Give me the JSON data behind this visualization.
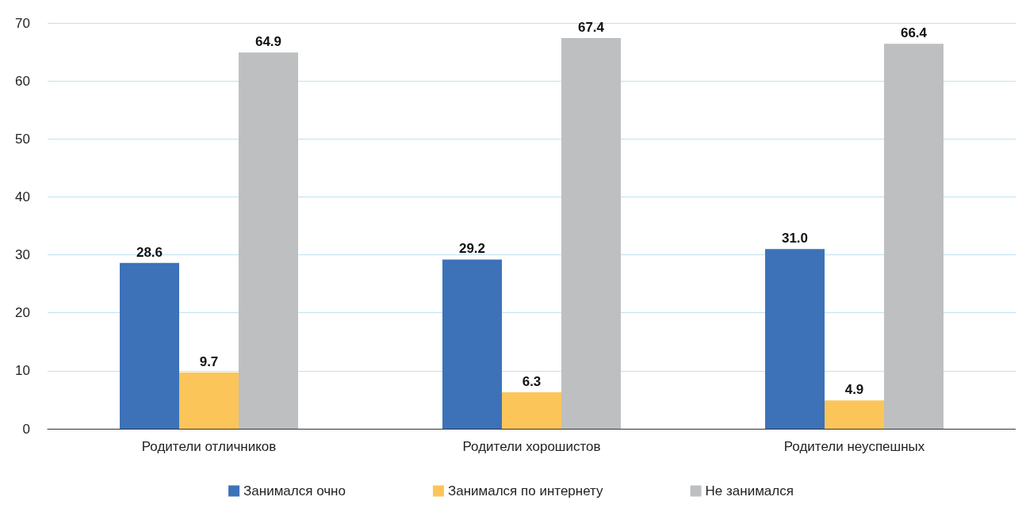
{
  "chart_data": {
    "type": "bar",
    "categories": [
      "Родители отличников",
      "Родители хорошистов",
      "Родители неуспешных"
    ],
    "series": [
      {
        "name": "Занимался очно",
        "color": "#3d72b8",
        "values": [
          28.6,
          29.2,
          31.0
        ]
      },
      {
        "name": "Занимался по интернету",
        "color": "#fcc55a",
        "values": [
          9.7,
          6.3,
          4.9
        ]
      },
      {
        "name": "Не занимался",
        "color": "#bdbfc1",
        "values": [
          64.9,
          67.4,
          66.4
        ]
      }
    ],
    "value_labels": [
      [
        "28.6",
        "29.2",
        "31.0"
      ],
      [
        "9.7",
        "6.3",
        "4.9"
      ],
      [
        "64.9",
        "67.4",
        "66.4"
      ]
    ],
    "ylim": [
      0,
      70
    ],
    "yticks": [
      0,
      10,
      20,
      30,
      40,
      50,
      60,
      70
    ],
    "grid": "y",
    "legend": "bottom"
  }
}
